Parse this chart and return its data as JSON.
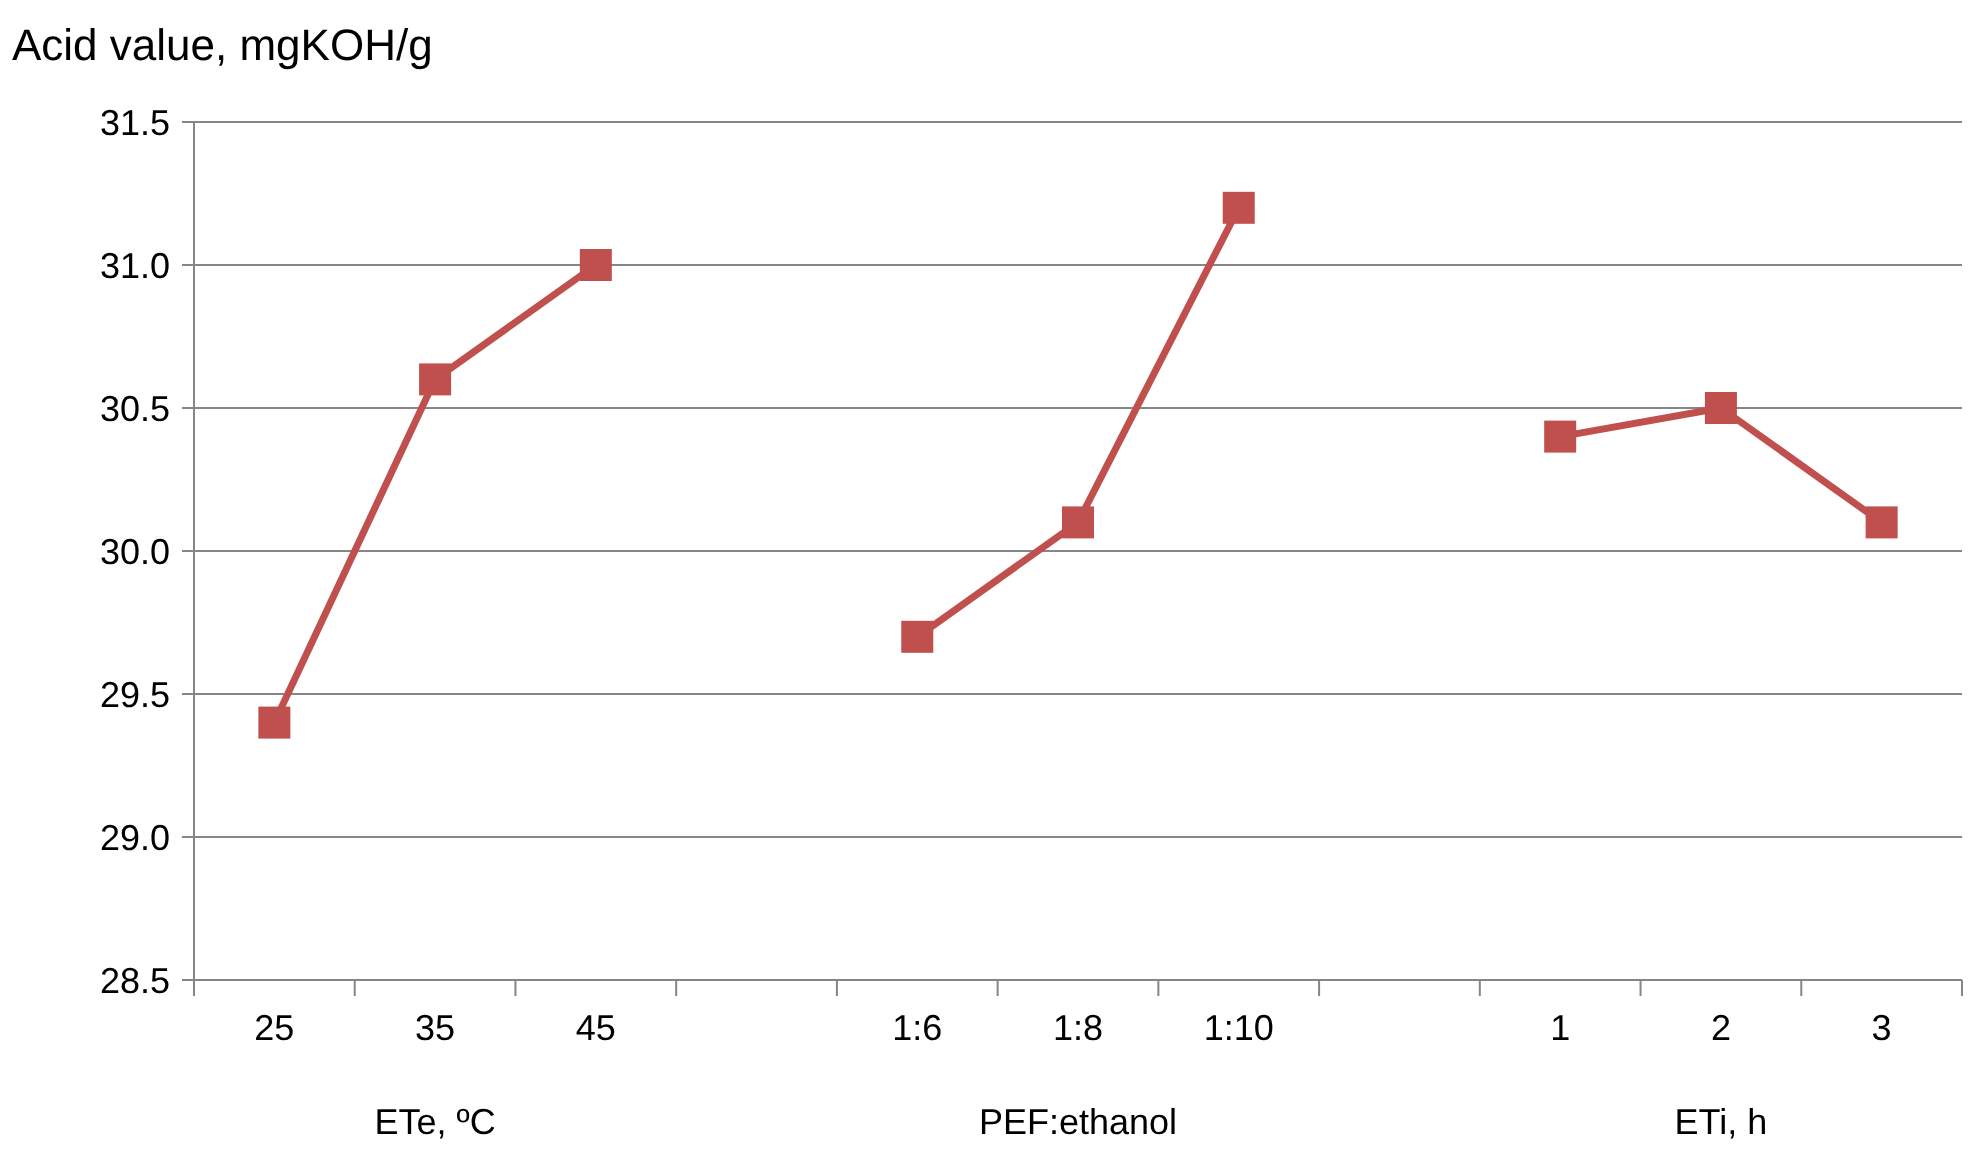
{
  "chart_data": {
    "type": "line",
    "ylabel": "Acid value, mgKOH/g",
    "categories": [
      "25",
      "35",
      "45",
      null,
      "1:6",
      "1:8",
      "1:10",
      null,
      "1",
      "2",
      "3"
    ],
    "series": [
      {
        "color": "#c0504d",
        "values": [
          29.4,
          30.6,
          31.0,
          null,
          29.7,
          30.1,
          31.2,
          null,
          30.4,
          30.5,
          30.1
        ]
      }
    ],
    "ylim": [
      28.5,
      31.5
    ],
    "yticks": [
      {
        "value": 28.5,
        "label": "28.5"
      },
      {
        "value": 29,
        "label": "29.0"
      },
      {
        "value": 29.5,
        "label": "29.5"
      },
      {
        "value": 30,
        "label": "30.0"
      },
      {
        "value": 30.5,
        "label": "30.5"
      },
      {
        "value": 31,
        "label": "31.0"
      },
      {
        "value": 31.5,
        "label": "31.5"
      }
    ],
    "grid": "y",
    "marker": "square",
    "line_style": "solid",
    "annotations": [
      "ETe, ºC",
      "PEF:ethanol",
      "ETi, h"
    ]
  }
}
